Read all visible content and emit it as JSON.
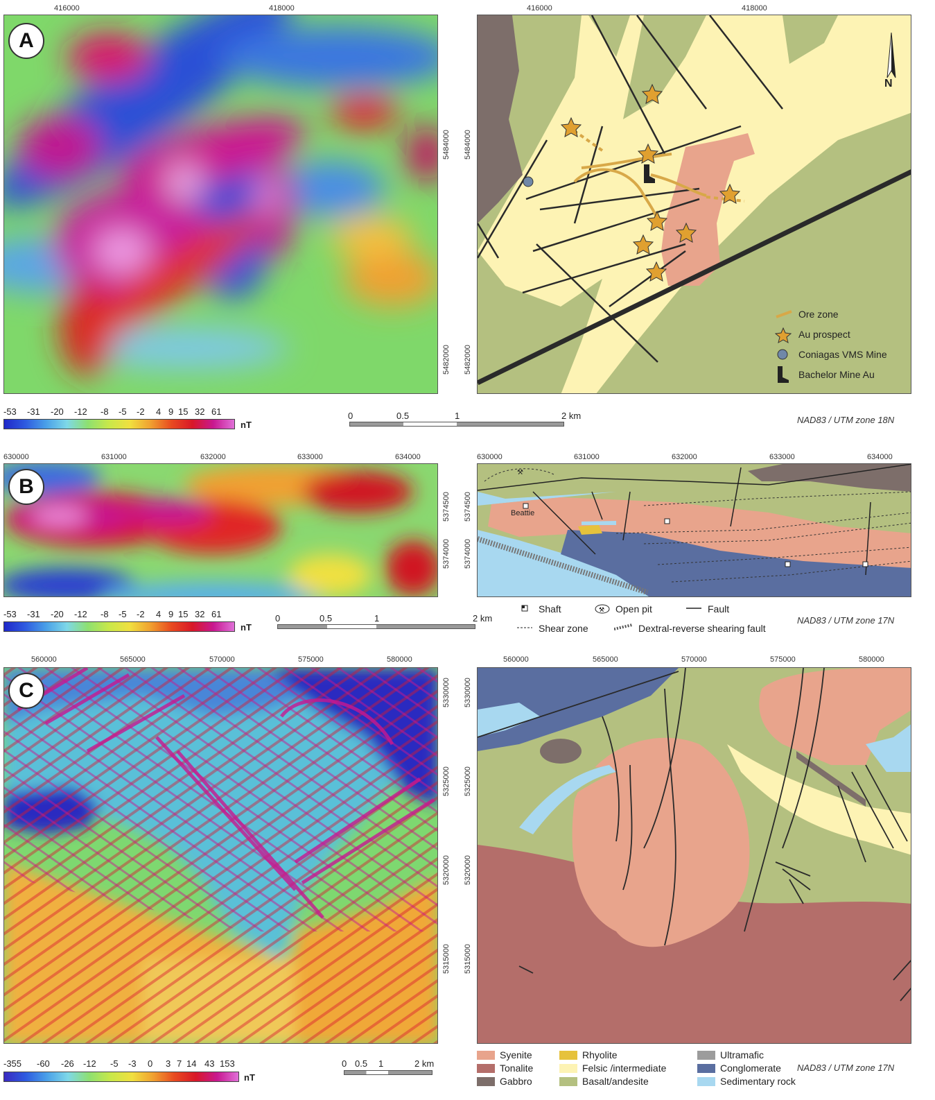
{
  "panels": {
    "A": {
      "label": "A",
      "mag_xticks": [
        "416000",
        "418000"
      ],
      "geo_xticks": [
        "416000",
        "418000"
      ],
      "yticks": [
        "5484000",
        "5482000"
      ],
      "colorbar_labels": [
        "-53",
        "-31",
        "-20",
        "-12",
        "-8",
        "-5",
        "-2",
        "4",
        "9",
        "15",
        "32",
        "61"
      ],
      "unit": "nT",
      "scale_labels": [
        "0",
        "0.5",
        "1",
        "2 km"
      ],
      "datum": "NAD83 / UTM zone 18N",
      "north": "N",
      "legend": [
        {
          "icon": "ore-zone",
          "label": "Ore zone"
        },
        {
          "icon": "au-prospect-star",
          "label": "Au prospect"
        },
        {
          "icon": "vms-mine-circle",
          "label": "Coniagas VMS Mine"
        },
        {
          "icon": "mine-boot",
          "label": "Bachelor Mine Au"
        }
      ]
    },
    "B": {
      "label": "B",
      "mag_xticks": [
        "630000",
        "631000",
        "632000",
        "633000",
        "634000"
      ],
      "geo_xticks": [
        "630000",
        "631000",
        "632000",
        "633000",
        "634000"
      ],
      "yticks": [
        "5374500",
        "5374000"
      ],
      "colorbar_labels": [
        "-53",
        "-31",
        "-20",
        "-12",
        "-8",
        "-5",
        "-2",
        "4",
        "9",
        "15",
        "32",
        "61"
      ],
      "unit": "nT",
      "scale_labels": [
        "0",
        "0.5",
        "1",
        "2 km"
      ],
      "datum": "NAD83 / UTM zone 17N",
      "map_label": "Beattie",
      "legend": [
        {
          "icon": "shaft",
          "label": "Shaft"
        },
        {
          "icon": "open-pit",
          "label": "Open pit"
        },
        {
          "icon": "fault-line",
          "label": "Fault"
        },
        {
          "icon": "shear-zone-dashed",
          "label": "Shear zone"
        },
        {
          "icon": "dextral-fault",
          "label": "Dextral-reverse shearing fault"
        }
      ]
    },
    "C": {
      "label": "C",
      "mag_xticks": [
        "560000",
        "565000",
        "570000",
        "575000",
        "580000"
      ],
      "geo_xticks": [
        "560000",
        "565000",
        "570000",
        "575000",
        "580000"
      ],
      "yticks": [
        "5330000",
        "5325000",
        "5320000",
        "5315000"
      ],
      "colorbar_labels": [
        "-355",
        "-60",
        "-26",
        "-12",
        "-5",
        "-3",
        "0",
        "3",
        "7",
        "14",
        "43",
        "153"
      ],
      "unit": "nT",
      "scale_labels": [
        "0",
        "0.5",
        "1",
        "2 km"
      ],
      "datum": "NAD83 / UTM zone 17N",
      "lithology_legend": [
        {
          "label": "Syenite",
          "color": "#e8a48c"
        },
        {
          "label": "Tonalite",
          "color": "#b46e6a"
        },
        {
          "label": "Gabbro",
          "color": "#7d6e6a"
        },
        {
          "label": "Rhyolite",
          "color": "#e6c23c"
        },
        {
          "label": "Felsic /intermediate",
          "color": "#fdf3b4"
        },
        {
          "label": "Basalt/andesite",
          "color": "#b4c080"
        },
        {
          "label": "Ultramafic",
          "color": "#9c9c9c"
        },
        {
          "label": "Conglomerate",
          "color": "#5a6ea0"
        },
        {
          "label": "Sedimentary rock",
          "color": "#a8d8f0"
        }
      ]
    }
  },
  "colors": {
    "syenite": "#e8a48c",
    "tonalite": "#b46e6a",
    "gabbro": "#7d6e6a",
    "felsic": "#fdf3b4",
    "basalt": "#b4c080",
    "conglomerate": "#5a6ea0",
    "sedimentary": "#a8d8f0",
    "ore": "#d8a848",
    "star": "#e0a030"
  }
}
